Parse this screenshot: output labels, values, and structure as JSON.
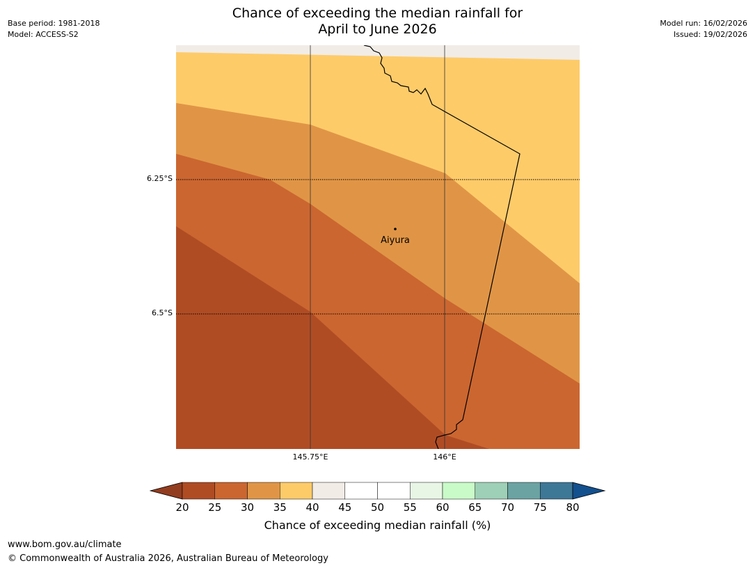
{
  "title": {
    "line1": "Chance of exceeding the median rainfall for",
    "line2": "April to June 2026"
  },
  "meta_left": {
    "base_period": "Base period: 1981-2018",
    "model": "Model: ACCESS-S2"
  },
  "meta_right": {
    "model_run": "Model run: 16/02/2026",
    "issued": "Issued: 19/02/2026"
  },
  "map": {
    "place_label": "Aiyura",
    "lat_labels": [
      "6.25°S",
      "6.5°S"
    ],
    "lon_labels": [
      "145.75°E",
      "146°E"
    ],
    "zones": [
      {
        "range": "35-40",
        "color": "#fecb69"
      },
      {
        "range": "30-35",
        "color": "#e09546"
      },
      {
        "range": "25-30",
        "color": "#cb6630"
      },
      {
        "range": "20-25",
        "color": "#b04c24"
      },
      {
        "range": "40-45",
        "color": "#f1ece6"
      }
    ]
  },
  "colorbar": {
    "ticks": [
      "20",
      "25",
      "30",
      "35",
      "40",
      "45",
      "50",
      "55",
      "60",
      "65",
      "70",
      "75",
      "80"
    ],
    "under_color": "#933d20",
    "over_color": "#13508e",
    "colors": [
      "#b04c24",
      "#cb6630",
      "#e09546",
      "#fecb69",
      "#f1ece6",
      "#ffffff",
      "#ffffff",
      "#e8f6e6",
      "#c9fbc8",
      "#9dd0b6",
      "#6ba3a3",
      "#3e7897"
    ],
    "label": "Chance of exceeding median rainfall (%)"
  },
  "footer": {
    "url": "www.bom.gov.au/climate",
    "copyright": "© Commonwealth of Australia 2026, Australian Bureau of Meteorology"
  }
}
